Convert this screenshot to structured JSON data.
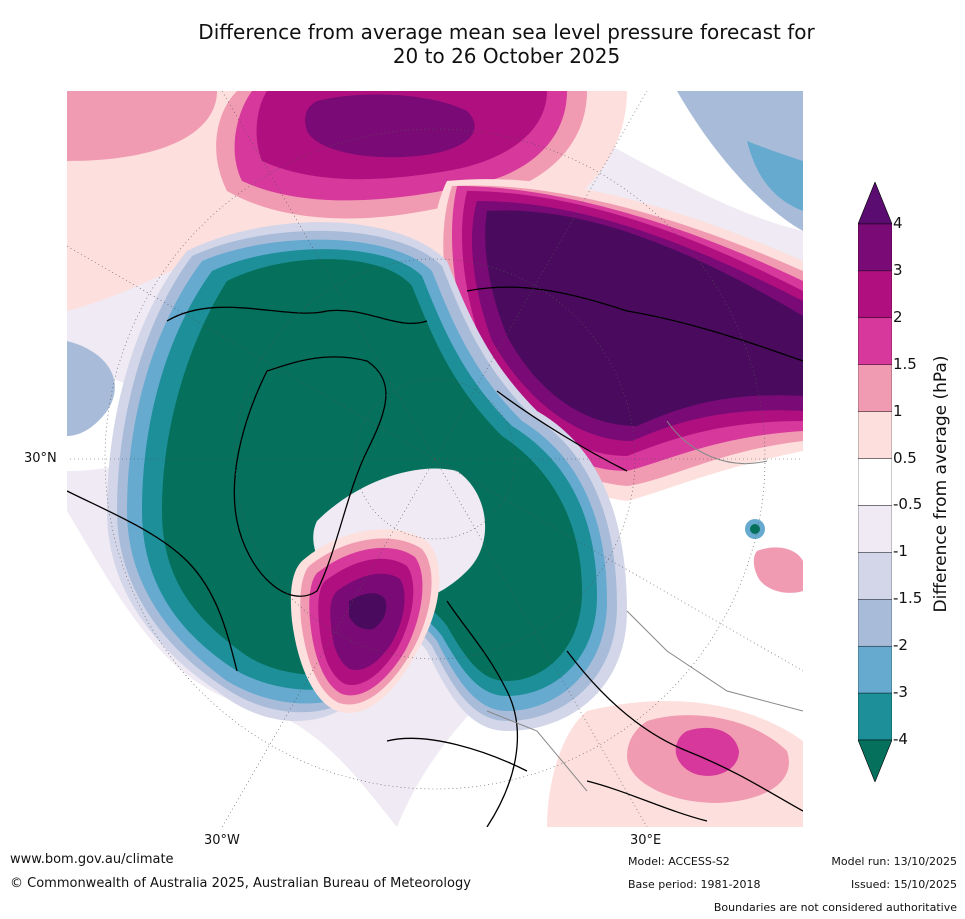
{
  "title": {
    "line1": "Difference from average mean sea level pressure forecast for",
    "line2": "20 to 26 October 2025"
  },
  "map": {
    "lat_labels": [
      "30°N"
    ],
    "lon_labels": [
      "30°W",
      "30°E"
    ],
    "colors": {
      "pos4": "#4a0b5e",
      "pos3": "#7a0a76",
      "pos2": "#b0107f",
      "pos15": "#d6389b",
      "pos1": "#f19bb3",
      "pos05": "#fde0dd",
      "neutral": "#ffffff",
      "neg05": "#efeaf3",
      "neg1": "#d3d6e8",
      "neg15": "#a8bcd9",
      "neg2": "#67aad0",
      "neg3": "#1c8f98",
      "neg4": "#05705c"
    }
  },
  "colorbar": {
    "title": "Difference from average (hPa)",
    "ticks": [
      "4",
      "3",
      "2",
      "1.5",
      "1",
      "0.5",
      "-0.5",
      "-1",
      "-1.5",
      "-2",
      "-3",
      "-4"
    ],
    "colors": [
      "#5a0c70",
      "#7a0a76",
      "#b0107f",
      "#d6389b",
      "#f19bb3",
      "#fde0dd",
      "#ffffff",
      "#efeaf3",
      "#d3d6e8",
      "#a8bcd9",
      "#67aad0",
      "#1c8f98",
      "#05705c"
    ]
  },
  "footer": {
    "website": "www.bom.gov.au/climate",
    "copyright": "© Commonwealth of Australia 2025, Australian Bureau of Meteorology",
    "model": "Model: ACCESS-S2",
    "base_period": "Base period: 1981-2018",
    "model_run": "Model run: 13/10/2025",
    "issued": "Issued: 15/10/2025",
    "boundaries_note": "Boundaries are not considered authoritative"
  }
}
